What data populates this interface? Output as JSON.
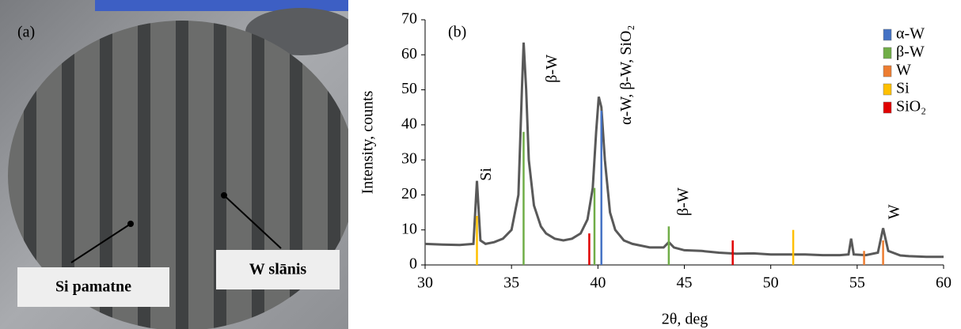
{
  "panel_a": {
    "label": "(a)",
    "labels": [
      "Si pamatne",
      "W slānis"
    ]
  },
  "chart_data": {
    "type": "line",
    "panel_label": "(b)",
    "x_label": "2θ, deg",
    "y_label": "Intensity, counts",
    "xlim": [
      30,
      60
    ],
    "xticks": [
      30,
      35,
      40,
      45,
      50,
      55,
      60
    ],
    "ylim": [
      0,
      70
    ],
    "yticks": [
      0,
      10,
      20,
      30,
      40,
      50,
      60,
      70
    ],
    "series": [
      {
        "type": "line",
        "color": "#595959",
        "x": [
          30,
          31,
          32,
          32.8,
          33.0,
          33.2,
          33.5,
          34,
          34.5,
          35,
          35.4,
          35.6,
          35.7,
          35.85,
          36,
          36.3,
          36.7,
          37,
          37.5,
          38,
          38.5,
          39,
          39.4,
          39.7,
          39.9,
          40.05,
          40.2,
          40.4,
          40.7,
          41,
          41.5,
          42,
          43,
          43.8,
          44.1,
          44.4,
          45,
          46,
          47,
          48,
          49,
          50,
          51,
          52,
          53,
          54,
          54.5,
          54.65,
          54.8,
          55.5,
          56.2,
          56.5,
          56.8,
          57.5,
          58,
          59,
          60
        ],
        "values": [
          6,
          5.8,
          5.7,
          6,
          24,
          7,
          6,
          6.5,
          7.5,
          10,
          20,
          50,
          63.5,
          50,
          30,
          17,
          11,
          9,
          7.5,
          7,
          7.5,
          9,
          13,
          22,
          38,
          48,
          45,
          30,
          15,
          10,
          7,
          6,
          5,
          5,
          6.5,
          5,
          4.2,
          4,
          3.5,
          3.2,
          3.3,
          3,
          3,
          3,
          2.8,
          2.8,
          3,
          7.5,
          3,
          2.8,
          3.5,
          10.5,
          4,
          2.7,
          2.5,
          2.3,
          2.3
        ]
      },
      {
        "type": "stick",
        "name": "α-W",
        "color": "#4472c4",
        "x": [
          40.2
        ],
        "values": [
          44
        ]
      },
      {
        "type": "stick",
        "name": "β-W",
        "color": "#70ad47",
        "x": [
          35.7,
          39.8,
          44.1
        ],
        "values": [
          38,
          22,
          11
        ]
      },
      {
        "type": "stick",
        "name": "W",
        "color": "#ed7d31",
        "x": [
          55.4,
          56.5
        ],
        "values": [
          4,
          7
        ]
      },
      {
        "type": "stick",
        "name": "Si",
        "color": "#ffc000",
        "x": [
          33.0,
          51.3
        ],
        "values": [
          14,
          10
        ]
      },
      {
        "type": "stick",
        "name": "SiO₂",
        "color": "#e00000",
        "x": [
          39.5,
          47.8
        ],
        "values": [
          9,
          7
        ]
      }
    ],
    "annotations": [
      {
        "text": "Si",
        "x": 33.6,
        "y": 24
      },
      {
        "text": "β-W",
        "x": 37.4,
        "y": 52
      },
      {
        "text": "α-W, β-W, SiO₂",
        "x": 41.7,
        "y": 40
      },
      {
        "text": "β-W",
        "x": 45,
        "y": 14
      },
      {
        "text": "W",
        "x": 57.2,
        "y": 13
      }
    ]
  }
}
